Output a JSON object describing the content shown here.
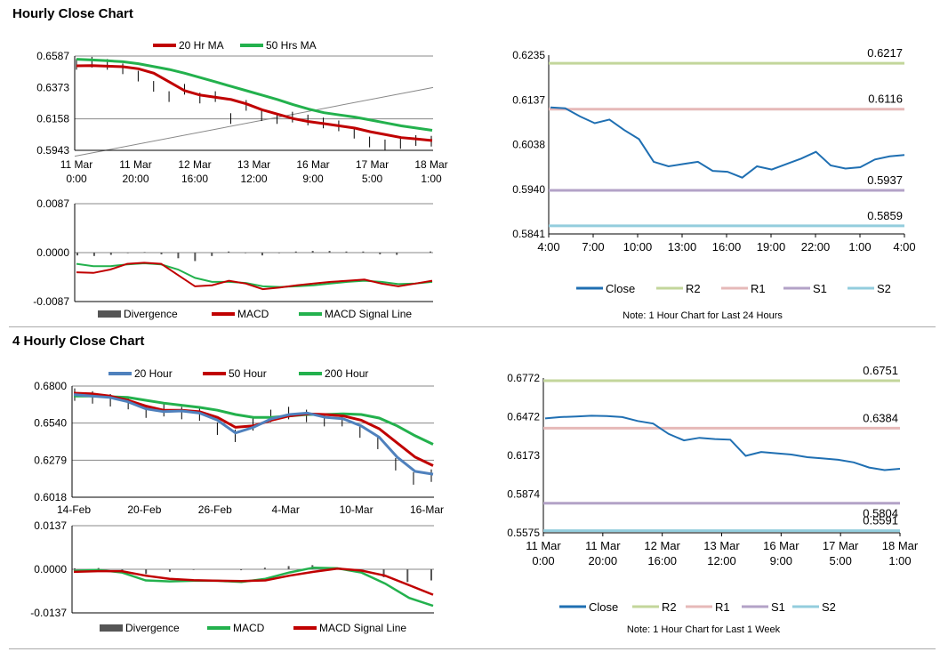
{
  "sections": {
    "hourly_title": "Hourly Close Chart",
    "four_hourly_title": "4 Hourly Close Chart"
  },
  "colors": {
    "ma_short": "#c00000",
    "ma_long": "#23b14d",
    "blue": "#4f81bd",
    "close": "#1f6fb2",
    "r2": "#c3d69b",
    "r1": "#e6b9b8",
    "s1": "#b3a2c7",
    "s2": "#93cddd",
    "divergence": "#555555",
    "grid": "#888888"
  },
  "chart_data": [
    {
      "id": "hourly_price",
      "type": "line",
      "x_tick_labels": [
        [
          "11 Mar",
          "0:00"
        ],
        [
          "11 Mar",
          "20:00"
        ],
        [
          "12 Mar",
          "16:00"
        ],
        [
          "13 Mar",
          "12:00"
        ],
        [
          "16 Mar",
          "9:00"
        ],
        [
          "17 Mar",
          "5:00"
        ],
        [
          "18 Mar",
          "1:00"
        ]
      ],
      "y_tick_labels": [
        "0.6587",
        "0.6373",
        "0.6158",
        "0.5943"
      ],
      "ylim": [
        0.5943,
        0.6587
      ],
      "legend": [
        "20 Hr MA",
        "50 Hrs MA"
      ],
      "series": [
        {
          "name": "20 Hr MA",
          "values": [
            0.652,
            0.6522,
            0.6518,
            0.6514,
            0.65,
            0.647,
            0.641,
            0.635,
            0.632,
            0.6305,
            0.629,
            0.626,
            0.622,
            0.619,
            0.616,
            0.614,
            0.6125,
            0.611,
            0.6095,
            0.607,
            0.605,
            0.603,
            0.602,
            0.601
          ]
        },
        {
          "name": "50 Hrs MA",
          "values": [
            0.6565,
            0.656,
            0.6555,
            0.6548,
            0.6535,
            0.6515,
            0.6495,
            0.647,
            0.644,
            0.641,
            0.638,
            0.635,
            0.632,
            0.629,
            0.6255,
            0.6225,
            0.62,
            0.6185,
            0.617,
            0.615,
            0.613,
            0.611,
            0.6095,
            0.608
          ]
        },
        {
          "name": "Close",
          "values": [
            0.653,
            0.6545,
            0.653,
            0.65,
            0.645,
            0.638,
            0.631,
            0.636,
            0.63,
            0.631,
            0.616,
            0.625,
            0.618,
            0.616,
            0.617,
            0.615,
            0.613,
            0.611,
            0.606,
            0.6,
            0.598,
            0.599,
            0.601,
            0.6005
          ]
        }
      ]
    },
    {
      "id": "hourly_macd",
      "type": "line",
      "y_tick_labels": [
        "0.0087",
        "0.0000",
        "-0.0087"
      ],
      "ylim": [
        -0.0087,
        0.0087
      ],
      "legend": [
        "Divergence",
        "MACD",
        "MACD Signal Line"
      ],
      "series": [
        {
          "name": "MACD",
          "values": [
            -0.0035,
            -0.0036,
            -0.003,
            -0.002,
            -0.0018,
            -0.002,
            -0.004,
            -0.006,
            -0.0058,
            -0.005,
            -0.0055,
            -0.0065,
            -0.0062,
            -0.0058,
            -0.0055,
            -0.0052,
            -0.005,
            -0.0048,
            -0.0055,
            -0.006,
            -0.0055,
            -0.005
          ]
        },
        {
          "name": "MACD Signal Line",
          "values": [
            -0.002,
            -0.0024,
            -0.0024,
            -0.0021,
            -0.0019,
            -0.0021,
            -0.003,
            -0.0045,
            -0.0052,
            -0.0052,
            -0.0054,
            -0.006,
            -0.0061,
            -0.006,
            -0.0058,
            -0.0055,
            -0.0052,
            -0.005,
            -0.0052,
            -0.0056,
            -0.0055,
            -0.0052
          ]
        },
        {
          "name": "Divergence",
          "values": [
            -0.0005,
            -0.0006,
            -0.0004,
            -0.0001,
            0.0001,
            -0.0003,
            -0.001,
            -0.0015,
            -0.0006,
            0.0002,
            -0.0001,
            -0.0005,
            -0.0001,
            0.0002,
            0.0003,
            0.0003,
            0.0002,
            0.0002,
            -0.0003,
            -0.0004,
            0.0,
            0.0002
          ]
        }
      ]
    },
    {
      "id": "hourly_24h",
      "type": "line",
      "x_tick_labels": [
        "4:00",
        "7:00",
        "10:00",
        "13:00",
        "16:00",
        "19:00",
        "22:00",
        "1:00",
        "4:00"
      ],
      "y_tick_labels": [
        "0.6235",
        "0.6137",
        "0.6038",
        "0.5940",
        "0.5841"
      ],
      "ylim": [
        0.5841,
        0.6235
      ],
      "levels": [
        {
          "name": "R2",
          "value": 0.6217,
          "label": "0.6217"
        },
        {
          "name": "R1",
          "value": 0.6116,
          "label": "0.6116"
        },
        {
          "name": "S1",
          "value": 0.5937,
          "label": "0.5937"
        },
        {
          "name": "S2",
          "value": 0.5859,
          "label": "0.5859"
        }
      ],
      "legend": [
        "Close",
        "R2",
        "R1",
        "S1",
        "S2"
      ],
      "note": "Note: 1 Hour Chart for Last 24 Hours",
      "series": [
        {
          "name": "Close",
          "values": [
            0.612,
            0.6118,
            0.61,
            0.6085,
            0.6093,
            0.607,
            0.605,
            0.6,
            0.599,
            0.5995,
            0.6,
            0.598,
            0.5978,
            0.5965,
            0.599,
            0.5983,
            0.5995,
            0.6007,
            0.6022,
            0.5992,
            0.5985,
            0.5988,
            0.6005,
            0.6012,
            0.6015
          ]
        }
      ]
    },
    {
      "id": "four_hourly_price",
      "type": "line",
      "x_tick_labels": [
        "14-Feb",
        "20-Feb",
        "26-Feb",
        "4-Mar",
        "10-Mar",
        "16-Mar"
      ],
      "y_tick_labels": [
        "0.6800",
        "0.6540",
        "0.6279",
        "0.6018"
      ],
      "ylim": [
        0.6018,
        0.68
      ],
      "legend": [
        "20 Hour",
        "50 Hour",
        "200 Hour"
      ],
      "series": [
        {
          "name": "20 Hour",
          "values": [
            0.674,
            0.673,
            0.672,
            0.669,
            0.664,
            0.662,
            0.6625,
            0.661,
            0.656,
            0.647,
            0.651,
            0.657,
            0.66,
            0.661,
            0.658,
            0.657,
            0.652,
            0.644,
            0.63,
            0.62,
            0.618
          ]
        },
        {
          "name": "50 Hour",
          "values": [
            0.675,
            0.6745,
            0.673,
            0.67,
            0.666,
            0.663,
            0.663,
            0.662,
            0.658,
            0.651,
            0.652,
            0.656,
            0.659,
            0.6605,
            0.66,
            0.659,
            0.656,
            0.65,
            0.64,
            0.63,
            0.624
          ]
        },
        {
          "name": "200 Hour",
          "values": [
            0.673,
            0.673,
            0.6725,
            0.672,
            0.67,
            0.668,
            0.6665,
            0.665,
            0.663,
            0.66,
            0.658,
            0.658,
            0.659,
            0.66,
            0.66,
            0.6605,
            0.66,
            0.6575,
            0.652,
            0.645,
            0.639
          ]
        },
        {
          "name": "Close",
          "values": [
            0.674,
            0.672,
            0.67,
            0.668,
            0.662,
            0.663,
            0.661,
            0.66,
            0.65,
            0.645,
            0.653,
            0.659,
            0.661,
            0.659,
            0.656,
            0.656,
            0.648,
            0.64,
            0.625,
            0.615,
            0.617
          ]
        }
      ]
    },
    {
      "id": "four_hourly_macd",
      "type": "line",
      "y_tick_labels": [
        "0.0137",
        "0.0000",
        "-0.0137"
      ],
      "ylim": [
        -0.0137,
        0.0137
      ],
      "legend": [
        "Divergence",
        "MACD",
        "MACD Signal Line"
      ],
      "series": [
        {
          "name": "MACD",
          "values": [
            -0.0005,
            -0.0002,
            -0.001,
            -0.0035,
            -0.0038,
            -0.0036,
            -0.0036,
            -0.004,
            -0.003,
            -0.001,
            0.0005,
            0.0003,
            -0.001,
            -0.0045,
            -0.009,
            -0.0115
          ]
        },
        {
          "name": "MACD Signal Line",
          "values": [
            -0.0008,
            -0.0006,
            -0.0006,
            -0.002,
            -0.003,
            -0.0034,
            -0.0036,
            -0.0037,
            -0.0035,
            -0.002,
            -0.0008,
            0.0002,
            -0.0004,
            -0.002,
            -0.005,
            -0.008
          ]
        },
        {
          "name": "Divergence",
          "values": [
            0.0003,
            0.0004,
            -0.0004,
            -0.0015,
            -0.0008,
            -0.0002,
            0.0,
            -0.0003,
            0.0005,
            0.001,
            0.0013,
            0.0001,
            -0.0006,
            -0.0025,
            -0.004,
            -0.0035
          ]
        }
      ]
    },
    {
      "id": "weekly_hourly",
      "type": "line",
      "x_tick_labels": [
        [
          "11 Mar",
          "0:00"
        ],
        [
          "11 Mar",
          "20:00"
        ],
        [
          "12 Mar",
          "16:00"
        ],
        [
          "13 Mar",
          "12:00"
        ],
        [
          "16 Mar",
          "9:00"
        ],
        [
          "17 Mar",
          "5:00"
        ],
        [
          "18 Mar",
          "1:00"
        ]
      ],
      "y_tick_labels": [
        "0.6772",
        "0.6472",
        "0.6173",
        "0.5874",
        "0.5575"
      ],
      "ylim": [
        0.5575,
        0.6772
      ],
      "levels": [
        {
          "name": "R2",
          "value": 0.6751,
          "label": "0.6751"
        },
        {
          "name": "R1",
          "value": 0.6384,
          "label": "0.6384"
        },
        {
          "name": "S1",
          "value": 0.5804,
          "label": "0.5804"
        },
        {
          "name": "S2",
          "value": 0.5591,
          "label": "0.5591"
        }
      ],
      "legend": [
        "Close",
        "R2",
        "R1",
        "S1",
        "S2"
      ],
      "note": "Note: 1 Hour Chart for Last 1 Week",
      "series": [
        {
          "name": "Close",
          "values": [
            0.646,
            0.647,
            0.6475,
            0.648,
            0.6478,
            0.647,
            0.644,
            0.642,
            0.634,
            0.629,
            0.631,
            0.63,
            0.6295,
            0.617,
            0.62,
            0.619,
            0.618,
            0.616,
            0.615,
            0.614,
            0.612,
            0.608,
            0.606,
            0.607
          ]
        }
      ]
    }
  ]
}
